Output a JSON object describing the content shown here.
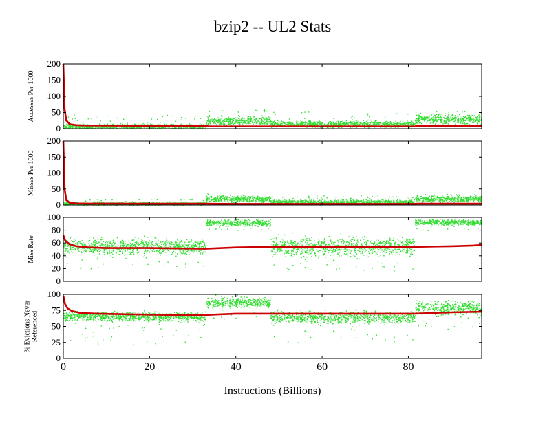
{
  "title": "bzip2 -- UL2  Stats",
  "xlabel": "Instructions (Billions)",
  "colors": {
    "scatter": "#33dd33",
    "average": "#cc0000",
    "frame": "#000000"
  },
  "chart_data": {
    "type": "scatter",
    "title": "bzip2 -- UL2  Stats",
    "xlabel": "Instructions (Billions)",
    "xlim": [
      0,
      97
    ],
    "xticks": [
      0,
      20,
      40,
      60,
      80
    ],
    "grid": false,
    "panels": [
      {
        "ylabel": "Accesses Per 1000",
        "ylim": [
          0,
          200
        ],
        "yticks": [
          0,
          50,
          100,
          150,
          200
        ],
        "series": [
          {
            "kind": "scatter",
            "segments": [
              {
                "x": [
                  0,
                  33
                ],
                "center": 8,
                "spread": 10,
                "outlier_max": 45
              },
              {
                "x": [
                  33,
                  48
                ],
                "center": 25,
                "spread": 20,
                "outlier_max": 60
              },
              {
                "x": [
                  48,
                  81.5
                ],
                "center": 15,
                "spread": 15,
                "outlier_max": 55
              },
              {
                "x": [
                  81.5,
                  97
                ],
                "center": 30,
                "spread": 20,
                "outlier_max": 55
              }
            ]
          },
          {
            "kind": "line",
            "x": [
              0,
              0.3,
              0.7,
              1.5,
              3,
              5,
              10,
              20,
              33,
              34,
              48,
              81.5,
              82,
              97
            ],
            "y": [
              200,
              60,
              25,
              14,
              11,
              10,
              9.5,
              9,
              8.5,
              7,
              7,
              7,
              8,
              8
            ]
          }
        ]
      },
      {
        "ylabel": "Misses Per 1000",
        "ylim": [
          0,
          200
        ],
        "yticks": [
          0,
          50,
          100,
          150,
          200
        ],
        "series": [
          {
            "kind": "scatter",
            "segments": [
              {
                "x": [
                  0,
                  33
                ],
                "center": 5,
                "spread": 7,
                "outlier_max": 20
              },
              {
                "x": [
                  33,
                  48
                ],
                "center": 20,
                "spread": 15,
                "outlier_max": 40
              },
              {
                "x": [
                  48,
                  81.5
                ],
                "center": 10,
                "spread": 10,
                "outlier_max": 30
              },
              {
                "x": [
                  81.5,
                  97
                ],
                "center": 20,
                "spread": 15,
                "outlier_max": 35
              }
            ]
          },
          {
            "kind": "line",
            "x": [
              0,
              0.3,
              0.7,
              1.5,
              3,
              5,
              10,
              20,
              33,
              40,
              48,
              81.5,
              82,
              97
            ],
            "y": [
              200,
              50,
              15,
              7,
              5,
              4.5,
              4.5,
              4,
              4,
              3.5,
              3.5,
              3.5,
              4,
              4
            ]
          }
        ]
      },
      {
        "ylabel": "Miss Rate",
        "ylim": [
          0,
          100
        ],
        "yticks": [
          0,
          20,
          40,
          60,
          80,
          100
        ],
        "series": [
          {
            "kind": "scatter",
            "segments": [
              {
                "x": [
                  0,
                  33
                ],
                "center": 55,
                "spread": 18,
                "outlier_min": 20
              },
              {
                "x": [
                  33,
                  48
                ],
                "center": 92,
                "spread": 7,
                "outlier_min": 80
              },
              {
                "x": [
                  48,
                  81.5
                ],
                "center": 55,
                "spread": 22,
                "outlier_min": 15
              },
              {
                "x": [
                  81.5,
                  97
                ],
                "center": 93,
                "spread": 6,
                "outlier_min": 80
              }
            ]
          },
          {
            "kind": "line",
            "x": [
              0,
              0.5,
              1.5,
              3,
              6,
              10,
              20,
              33,
              40,
              48,
              60,
              70,
              81.5,
              90,
              95,
              97
            ],
            "y": [
              72,
              63,
              58,
              55,
              53,
              52,
              52,
              51,
              53,
              54,
              54,
              54,
              54,
              55,
              56,
              57
            ]
          }
        ]
      },
      {
        "ylabel": "% Evictions Never Referenced",
        "ylim": [
          0,
          100
        ],
        "yticks": [
          0,
          25,
          50,
          75,
          100
        ],
        "series": [
          {
            "kind": "scatter",
            "segments": [
              {
                "x": [
                  0,
                  33
                ],
                "center": 66,
                "spread": 10,
                "outlier_min": 20
              },
              {
                "x": [
                  33,
                  48
                ],
                "center": 88,
                "spread": 12,
                "outlier_min": 60
              },
              {
                "x": [
                  48,
                  81.5
                ],
                "center": 65,
                "spread": 14,
                "outlier_min": 25
              },
              {
                "x": [
                  81.5,
                  97
                ],
                "center": 80,
                "spread": 16,
                "outlier_min": 45
              }
            ]
          },
          {
            "kind": "line",
            "x": [
              0,
              0.4,
              1,
              2,
              4,
              8,
              15,
              25,
              33,
              40,
              48,
              60,
              81.5,
              90,
              97
            ],
            "y": [
              98,
              85,
              78,
              74,
              71,
              70,
              69,
              68,
              68,
              70,
              70,
              70,
              70,
              72,
              73
            ]
          }
        ]
      }
    ]
  }
}
